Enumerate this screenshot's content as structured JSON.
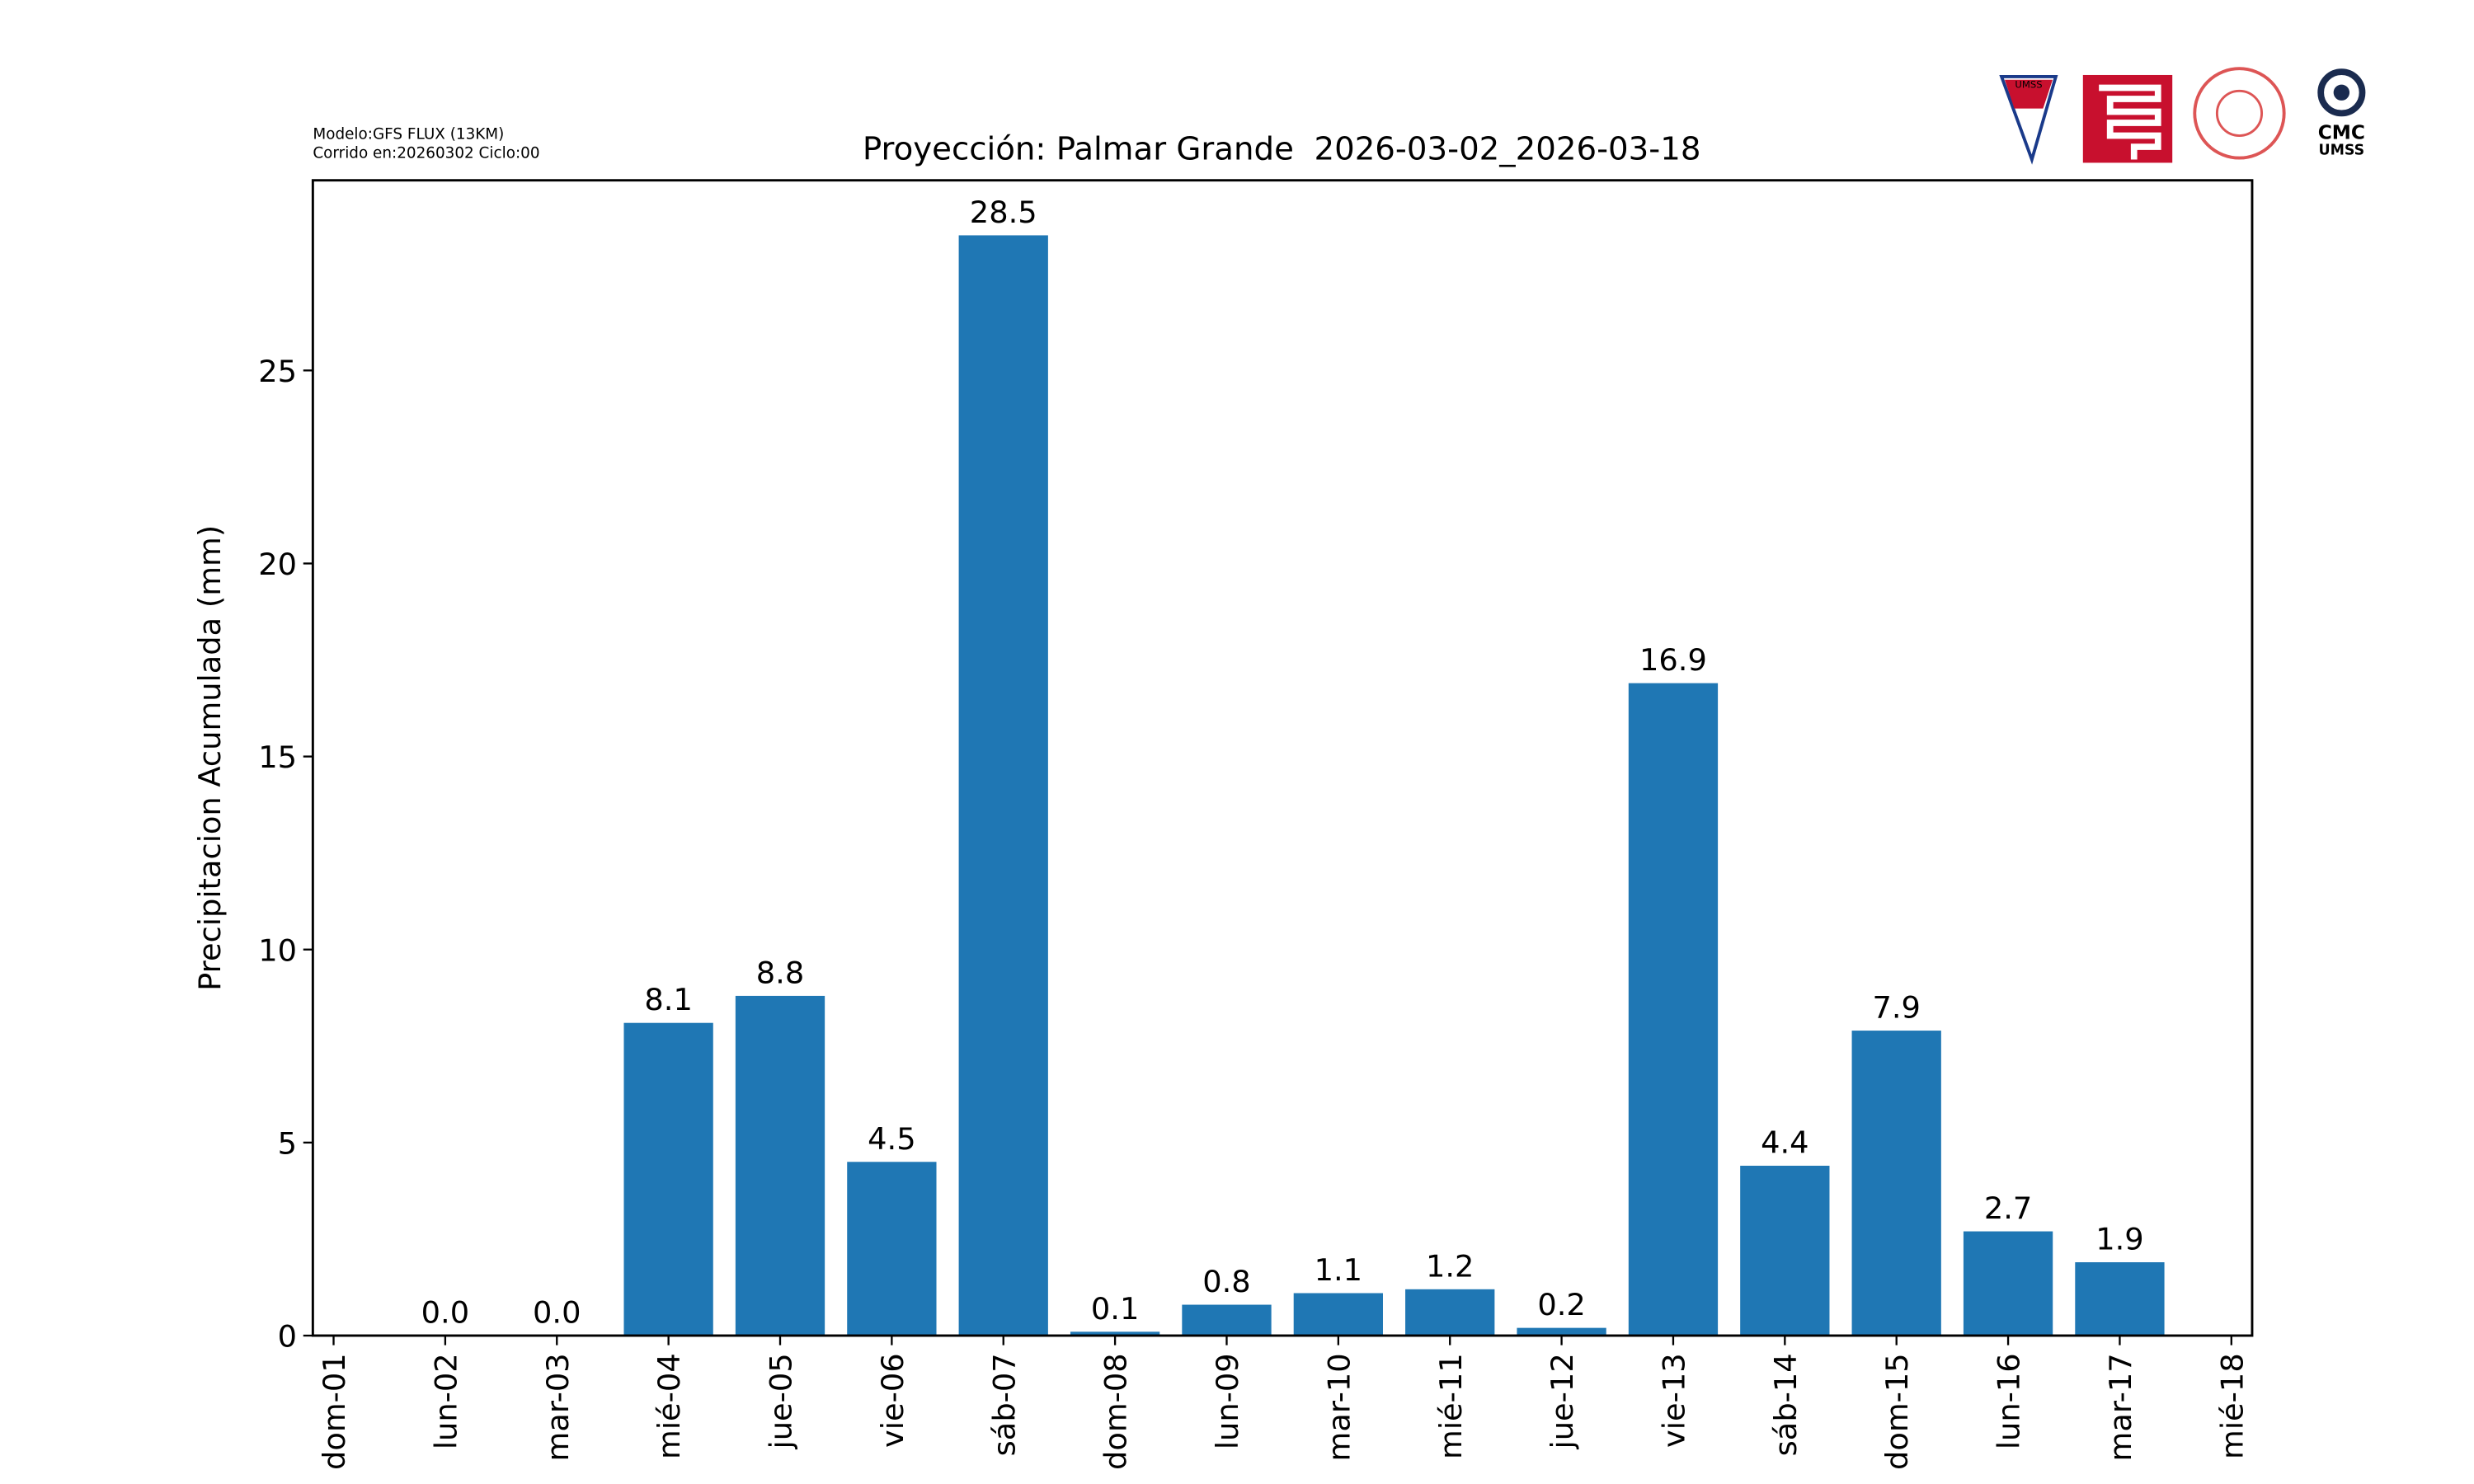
{
  "chart_data": {
    "type": "bar",
    "title": "Proyección: Palmar Grande  2026-03-02_2026-03-18",
    "subtitle_lines": [
      "Modelo:GFS FLUX (13KM)",
      "Corrido en:20260302 Ciclo:00"
    ],
    "y_label": "Precipitacion Acumulada (mm)",
    "categories": [
      "dom-01",
      "lun-02",
      "mar-03",
      "mié-04",
      "jue-05",
      "vie-06",
      "sáb-07",
      "dom-08",
      "lun-09",
      "mar-10",
      "mié-11",
      "jue-12",
      "vie-13",
      "sáb-14",
      "dom-15",
      "lun-16",
      "mar-17",
      "mié-18"
    ],
    "values": [
      null,
      0,
      0,
      8.1,
      8.8,
      4.5,
      28.5,
      0.1,
      0.8,
      1.1,
      1.2,
      0.2,
      16.9,
      4.4,
      7.9,
      2.7,
      1.9,
      null
    ],
    "value_labels": [
      null,
      "0.0",
      "0.0",
      "8.1",
      "8.8",
      "4.5",
      "28.5",
      "0.1",
      "0.8",
      "1.1",
      "1.2",
      "0.2",
      "16.9",
      "4.4",
      "7.9",
      "2.7",
      "1.9",
      null
    ],
    "color": "#1f77b4",
    "ylim": [
      0,
      29.925
    ],
    "yticks": [
      0,
      5,
      10,
      15,
      20,
      25
    ],
    "grid": false
  },
  "logos": {
    "shield": "UMSS",
    "cmc": "CMC",
    "cmc_sub": "UMSS"
  }
}
